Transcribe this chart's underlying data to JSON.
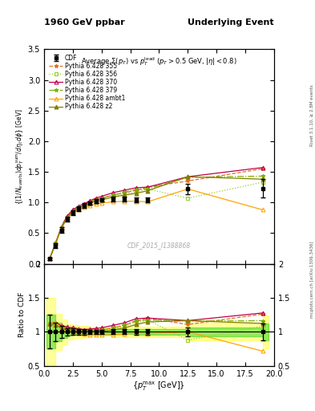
{
  "title_left": "1960 GeV ppbar",
  "title_right": "Underlying Event",
  "right_label_top": "Rivet 3.1.10, ≥ 2.8M events",
  "right_label_bottom": "mcplots.cern.ch [arXiv:1306.3436]",
  "watermark": "CDF_2015_I1388868",
  "ylabel_main": "{(1/N_{events}) dp_T^{sum}/d\\eta_t d\\phi} [GeV]",
  "ylabel_ratio": "Ratio to CDF",
  "xlabel": "{p_T^{max} [GeV]}",
  "xlim": [
    0,
    20
  ],
  "ylim_main": [
    0,
    3.5
  ],
  "ylim_ratio": [
    0.5,
    2.0
  ],
  "cdf_x": [
    0.5,
    1.0,
    1.5,
    2.0,
    2.5,
    3.0,
    3.5,
    4.0,
    4.5,
    5.0,
    6.0,
    7.0,
    8.0,
    9.0,
    12.5,
    19.0
  ],
  "cdf_y": [
    0.08,
    0.3,
    0.55,
    0.73,
    0.83,
    0.9,
    0.95,
    0.99,
    1.02,
    1.04,
    1.06,
    1.06,
    1.04,
    1.04,
    1.22,
    1.23
  ],
  "cdf_yerr": [
    0.02,
    0.04,
    0.05,
    0.04,
    0.04,
    0.04,
    0.04,
    0.03,
    0.03,
    0.03,
    0.04,
    0.04,
    0.04,
    0.04,
    0.08,
    0.15
  ],
  "py355_x": [
    0.5,
    1.0,
    1.5,
    2.0,
    2.5,
    3.0,
    3.5,
    4.0,
    4.5,
    5.0,
    6.0,
    7.0,
    8.0,
    9.0,
    12.5,
    19.0
  ],
  "py355_y": [
    0.09,
    0.34,
    0.6,
    0.77,
    0.87,
    0.93,
    0.97,
    1.01,
    1.05,
    1.07,
    1.12,
    1.16,
    1.2,
    1.25,
    1.35,
    1.55
  ],
  "py355_color": "#e07020",
  "py355_style": "--",
  "py355_marker": "*",
  "py356_x": [
    0.5,
    1.0,
    1.5,
    2.0,
    2.5,
    3.0,
    3.5,
    4.0,
    4.5,
    5.0,
    6.0,
    7.0,
    8.0,
    9.0,
    12.5,
    19.0
  ],
  "py356_y": [
    0.09,
    0.33,
    0.58,
    0.75,
    0.85,
    0.91,
    0.96,
    1.0,
    1.03,
    1.06,
    1.1,
    1.14,
    1.17,
    1.22,
    1.07,
    1.33
  ],
  "py356_color": "#9acd32",
  "py356_style": ":",
  "py356_marker": "s",
  "py370_x": [
    0.5,
    1.0,
    1.5,
    2.0,
    2.5,
    3.0,
    3.5,
    4.0,
    4.5,
    5.0,
    6.0,
    7.0,
    8.0,
    9.0,
    12.5,
    19.0
  ],
  "py370_y": [
    0.09,
    0.34,
    0.6,
    0.78,
    0.88,
    0.94,
    0.98,
    1.03,
    1.07,
    1.1,
    1.16,
    1.2,
    1.24,
    1.25,
    1.42,
    1.57
  ],
  "py370_color": "#c0004a",
  "py370_style": "-",
  "py370_marker": "^",
  "py379_x": [
    0.5,
    1.0,
    1.5,
    2.0,
    2.5,
    3.0,
    3.5,
    4.0,
    4.5,
    5.0,
    6.0,
    7.0,
    8.0,
    9.0,
    12.5,
    19.0
  ],
  "py379_y": [
    0.09,
    0.34,
    0.59,
    0.76,
    0.86,
    0.92,
    0.96,
    1.0,
    1.04,
    1.07,
    1.12,
    1.17,
    1.21,
    1.22,
    1.41,
    1.43
  ],
  "py379_color": "#7ab000",
  "py379_style": "-.",
  "py379_marker": "*",
  "pyambt1_x": [
    0.5,
    1.0,
    1.5,
    2.0,
    2.5,
    3.0,
    3.5,
    4.0,
    4.5,
    5.0,
    6.0,
    7.0,
    8.0,
    9.0,
    12.5,
    19.0
  ],
  "pyambt1_y": [
    0.09,
    0.34,
    0.57,
    0.74,
    0.83,
    0.88,
    0.92,
    0.95,
    0.97,
    0.99,
    1.01,
    1.02,
    1.02,
    1.01,
    1.22,
    0.88
  ],
  "pyambt1_color": "#ffa500",
  "pyambt1_style": "-",
  "pyambt1_marker": "^",
  "pyz2_x": [
    0.5,
    1.0,
    1.5,
    2.0,
    2.5,
    3.0,
    3.5,
    4.0,
    4.5,
    5.0,
    6.0,
    7.0,
    8.0,
    9.0,
    12.5,
    19.0
  ],
  "pyz2_y": [
    0.09,
    0.33,
    0.58,
    0.75,
    0.85,
    0.91,
    0.95,
    0.99,
    1.02,
    1.04,
    1.09,
    1.12,
    1.15,
    1.19,
    1.42,
    1.38
  ],
  "pyz2_color": "#808000",
  "pyz2_style": "-",
  "pyz2_marker": "^",
  "band_color_green": "#00c800",
  "band_color_yellow": "#ffff00",
  "band_alpha": 0.4
}
